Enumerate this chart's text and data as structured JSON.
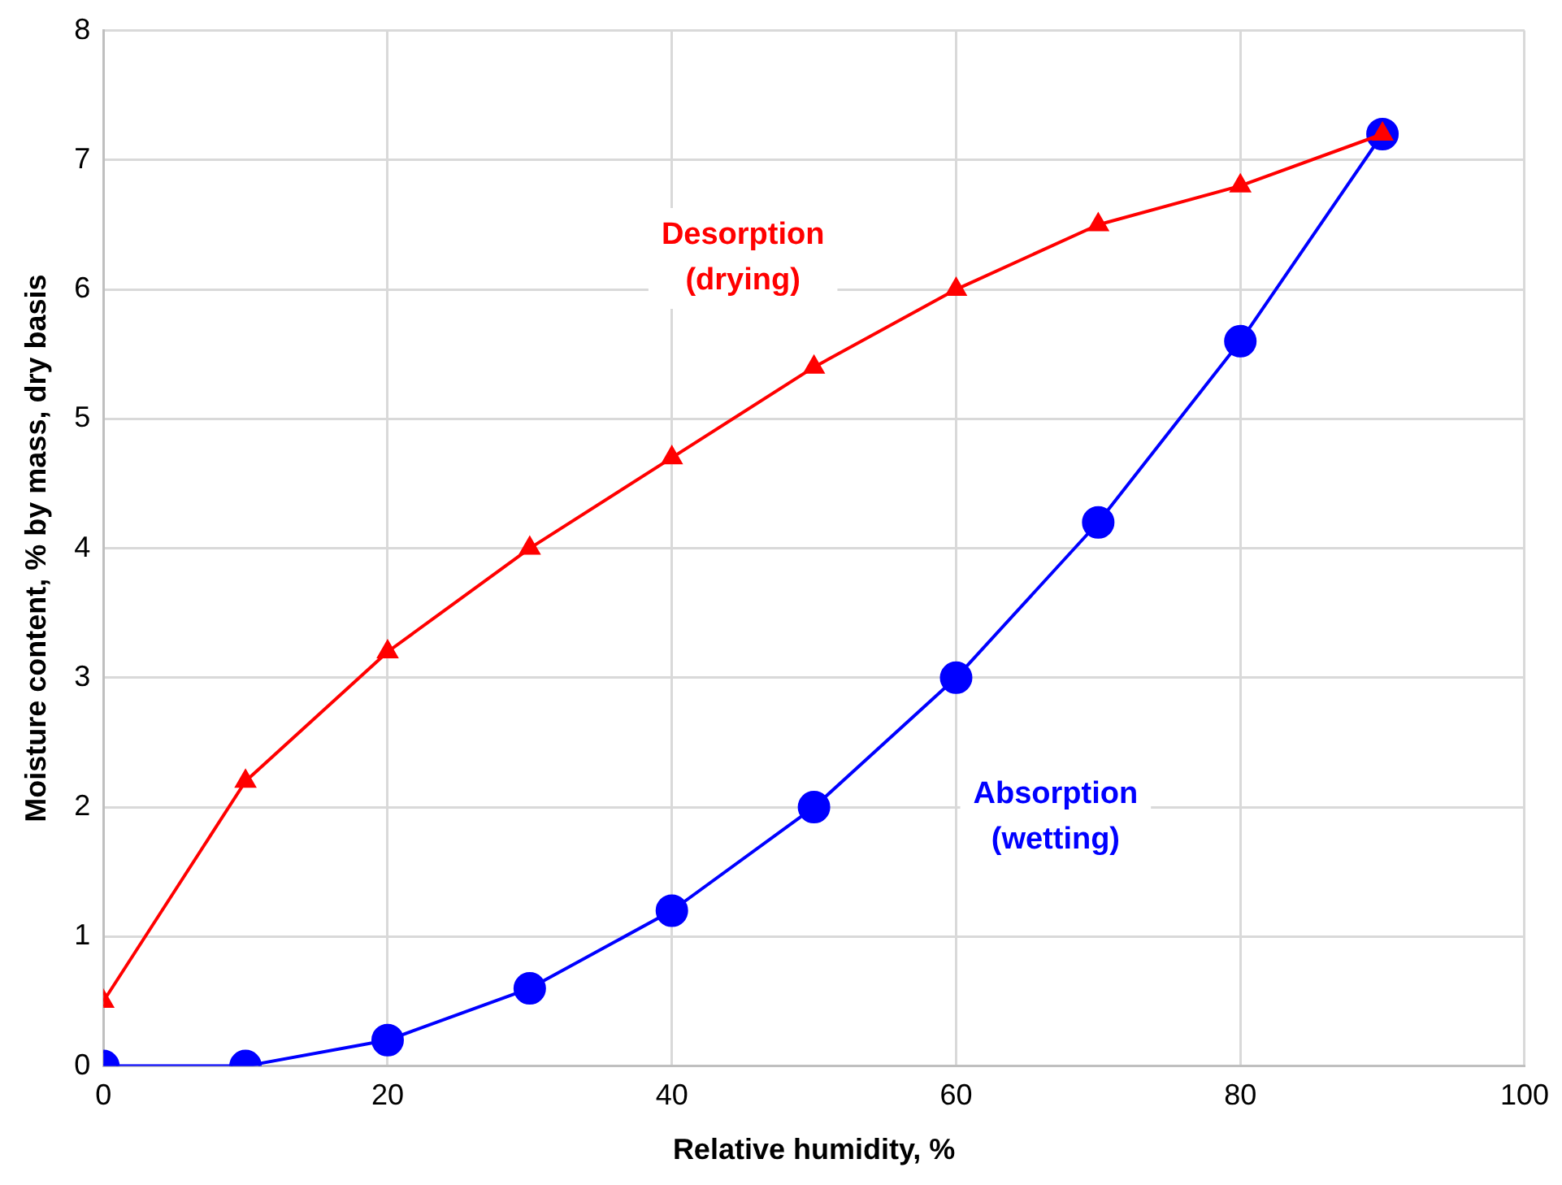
{
  "chart_data": {
    "type": "line",
    "xlabel": "Relative humidity, %",
    "ylabel": "Moisture content, % by mass, dry basis",
    "x": [
      0,
      10,
      20,
      30,
      40,
      50,
      60,
      70,
      80,
      90
    ],
    "series": [
      {
        "name": "Desorption (drying)",
        "color": "#ff0000",
        "marker": "triangle",
        "values": [
          0.5,
          2.2,
          3.2,
          4.0,
          4.7,
          5.4,
          6.0,
          6.5,
          6.8,
          7.2
        ]
      },
      {
        "name": "Absorption (wetting)",
        "color": "#0000ff",
        "marker": "circle",
        "values": [
          0,
          0,
          0.2,
          0.6,
          1.2,
          2.0,
          3.0,
          4.2,
          5.6,
          7.2
        ]
      }
    ],
    "xlim": [
      0,
      100
    ],
    "xticks": [
      0,
      20,
      40,
      60,
      80,
      100
    ],
    "ylim": [
      0,
      8
    ],
    "yticks": [
      0,
      1,
      2,
      3,
      4,
      5,
      6,
      7,
      8
    ],
    "grid": true,
    "legend": false
  }
}
